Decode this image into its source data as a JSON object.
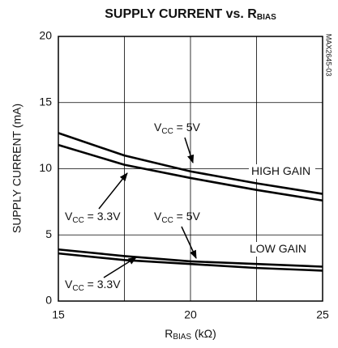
{
  "chart_data": {
    "type": "line",
    "title": {
      "main": "SUPPLY CURRENT vs. R",
      "sub": "BIAS"
    },
    "xlabel": {
      "main": "R",
      "sub": "BIAS",
      "rest": " (kΩ)"
    },
    "ylabel": "SUPPLY CURRENT (mA)",
    "side_note": "MAX2645-03",
    "x": [
      15,
      17.5,
      20,
      22.5,
      25
    ],
    "series": [
      {
        "color": "#000000",
        "values": [
          12.7,
          11.0,
          9.8,
          8.9,
          8.1
        ]
      },
      {
        "color": "#000000",
        "values": [
          11.8,
          10.3,
          9.3,
          8.4,
          7.6
        ]
      },
      {
        "color": "#000000",
        "values": [
          3.9,
          3.4,
          3.0,
          2.8,
          2.6
        ]
      },
      {
        "color": "#000000",
        "values": [
          3.6,
          3.1,
          2.8,
          2.5,
          2.3
        ]
      }
    ],
    "xlim": [
      15,
      25
    ],
    "xticks": [
      15,
      20,
      25
    ],
    "x_grid": [
      17.5,
      22.5
    ],
    "ylim": [
      0,
      20
    ],
    "yticks": [
      0,
      5,
      10,
      15,
      20
    ],
    "grid": true,
    "annotations": [
      {
        "main": "V",
        "sub": "CC",
        "rest": " = 5V"
      },
      {
        "main": "HIGH GAIN"
      },
      {
        "main": "V",
        "sub": "CC",
        "rest": " = 3.3V"
      },
      {
        "main": "V",
        "sub": "CC",
        "rest": " = 5V"
      },
      {
        "main": "LOW GAIN"
      },
      {
        "main": "V",
        "sub": "CC",
        "rest": " = 3.3V"
      }
    ]
  }
}
